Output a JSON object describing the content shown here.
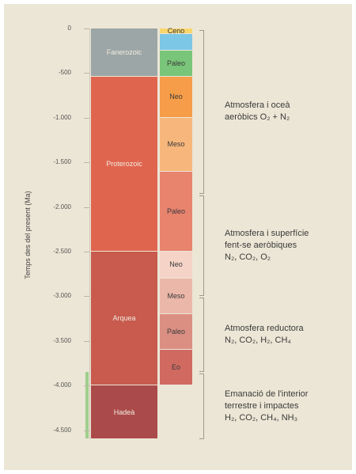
{
  "axis": {
    "title": "Temps des del present (Ma)",
    "ticks": [
      "0",
      "-500",
      "-1.000",
      "-1.500",
      "-2.000",
      "-2.500",
      "-3.000",
      "-3.500",
      "-4.000",
      "-4.500"
    ]
  },
  "eons": [
    {
      "name": "Fanerozoic",
      "color": "#9ca6a6",
      "start_ma": 541,
      "end_ma": 0
    },
    {
      "name": "Proterozoic",
      "color": "#e0654f",
      "start_ma": 2500,
      "end_ma": 541
    },
    {
      "name": "Arquea",
      "color": "#c85a4e",
      "start_ma": 4000,
      "end_ma": 2500
    },
    {
      "name": "Hadeà",
      "color": "#ab4a4a",
      "start_ma": 4600,
      "end_ma": 4000
    }
  ],
  "eras": [
    {
      "name": "Ceno",
      "color": "#f9d66b",
      "start_ma": 66,
      "end_ma": 0
    },
    {
      "name": "",
      "color": "#7cc7e6",
      "start_ma": 252,
      "end_ma": 66
    },
    {
      "name": "Paleo",
      "color": "#79c579",
      "start_ma": 541,
      "end_ma": 252
    },
    {
      "name": "Neo",
      "color": "#f59d48",
      "start_ma": 1000,
      "end_ma": 541
    },
    {
      "name": "Meso",
      "color": "#f7b77c",
      "start_ma": 1600,
      "end_ma": 1000
    },
    {
      "name": "Paleo",
      "color": "#e8836e",
      "start_ma": 2500,
      "end_ma": 1600
    },
    {
      "name": "Neo",
      "color": "#f5d3c7",
      "start_ma": 2800,
      "end_ma": 2500
    },
    {
      "name": "Meso",
      "color": "#ebb7a9",
      "start_ma": 3200,
      "end_ma": 2800
    },
    {
      "name": "Paleo",
      "color": "#db8f83",
      "start_ma": 3600,
      "end_ma": 3200
    },
    {
      "name": "Eo",
      "color": "#d06a61",
      "start_ma": 4000,
      "end_ma": 3600
    }
  ],
  "descriptions": [
    {
      "lines": [
        "Atmosfera i oceà",
        "aeròbics O₂ + N₂"
      ],
      "start_ma": 1850,
      "end_ma": 0
    },
    {
      "lines": [
        "Atmosfera i superfície",
        "fent-se aeròbiques",
        "N₂, CO₂, O₂"
      ],
      "start_ma": 3000,
      "end_ma": 1850
    },
    {
      "lines": [
        "Atmosfera reductora",
        "N₂, CO₂, H₂, CH₄"
      ],
      "start_ma": 3850,
      "end_ma": 3000
    },
    {
      "lines": [
        "Emanació de l'interior",
        "terrestre i impactes",
        "H₂, CO₂, CH₄, NH₃"
      ],
      "start_ma": 4600,
      "end_ma": 3850
    }
  ]
}
